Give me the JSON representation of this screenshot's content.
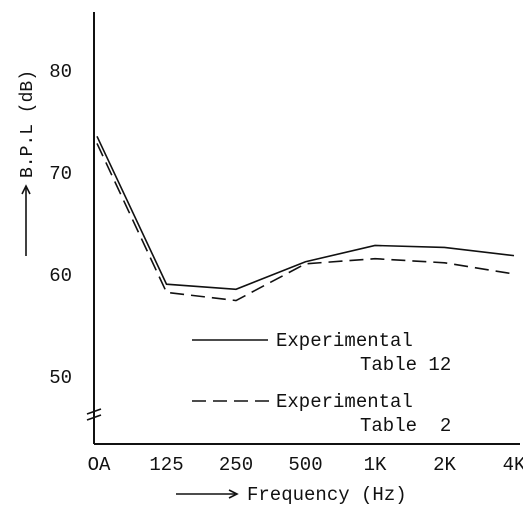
{
  "chart_data": {
    "type": "line",
    "xlabel": "Frequency (Hz)",
    "ylabel": "B.P.L (dB)",
    "categories": [
      "OA",
      "125",
      "250",
      "500",
      "1K",
      "2K",
      "4K"
    ],
    "ylim": [
      47,
      83
    ],
    "yticks": [
      50,
      60,
      70,
      80
    ],
    "grid": false,
    "legend_position": "bottom-right",
    "series": [
      {
        "name": "Experimental Table 12",
        "style": "solid",
        "values": [
          73.5,
          59.0,
          58.5,
          61.2,
          62.8,
          62.6,
          61.8
        ]
      },
      {
        "name": "Experimental Table 2",
        "style": "dashed",
        "values": [
          72.8,
          58.2,
          57.4,
          61.0,
          61.5,
          61.1,
          60.0
        ]
      }
    ],
    "legend": [
      {
        "line1": "Experimental",
        "line2": "Table 12"
      },
      {
        "line1": "Experimental",
        "line2": "Table  2"
      }
    ]
  }
}
